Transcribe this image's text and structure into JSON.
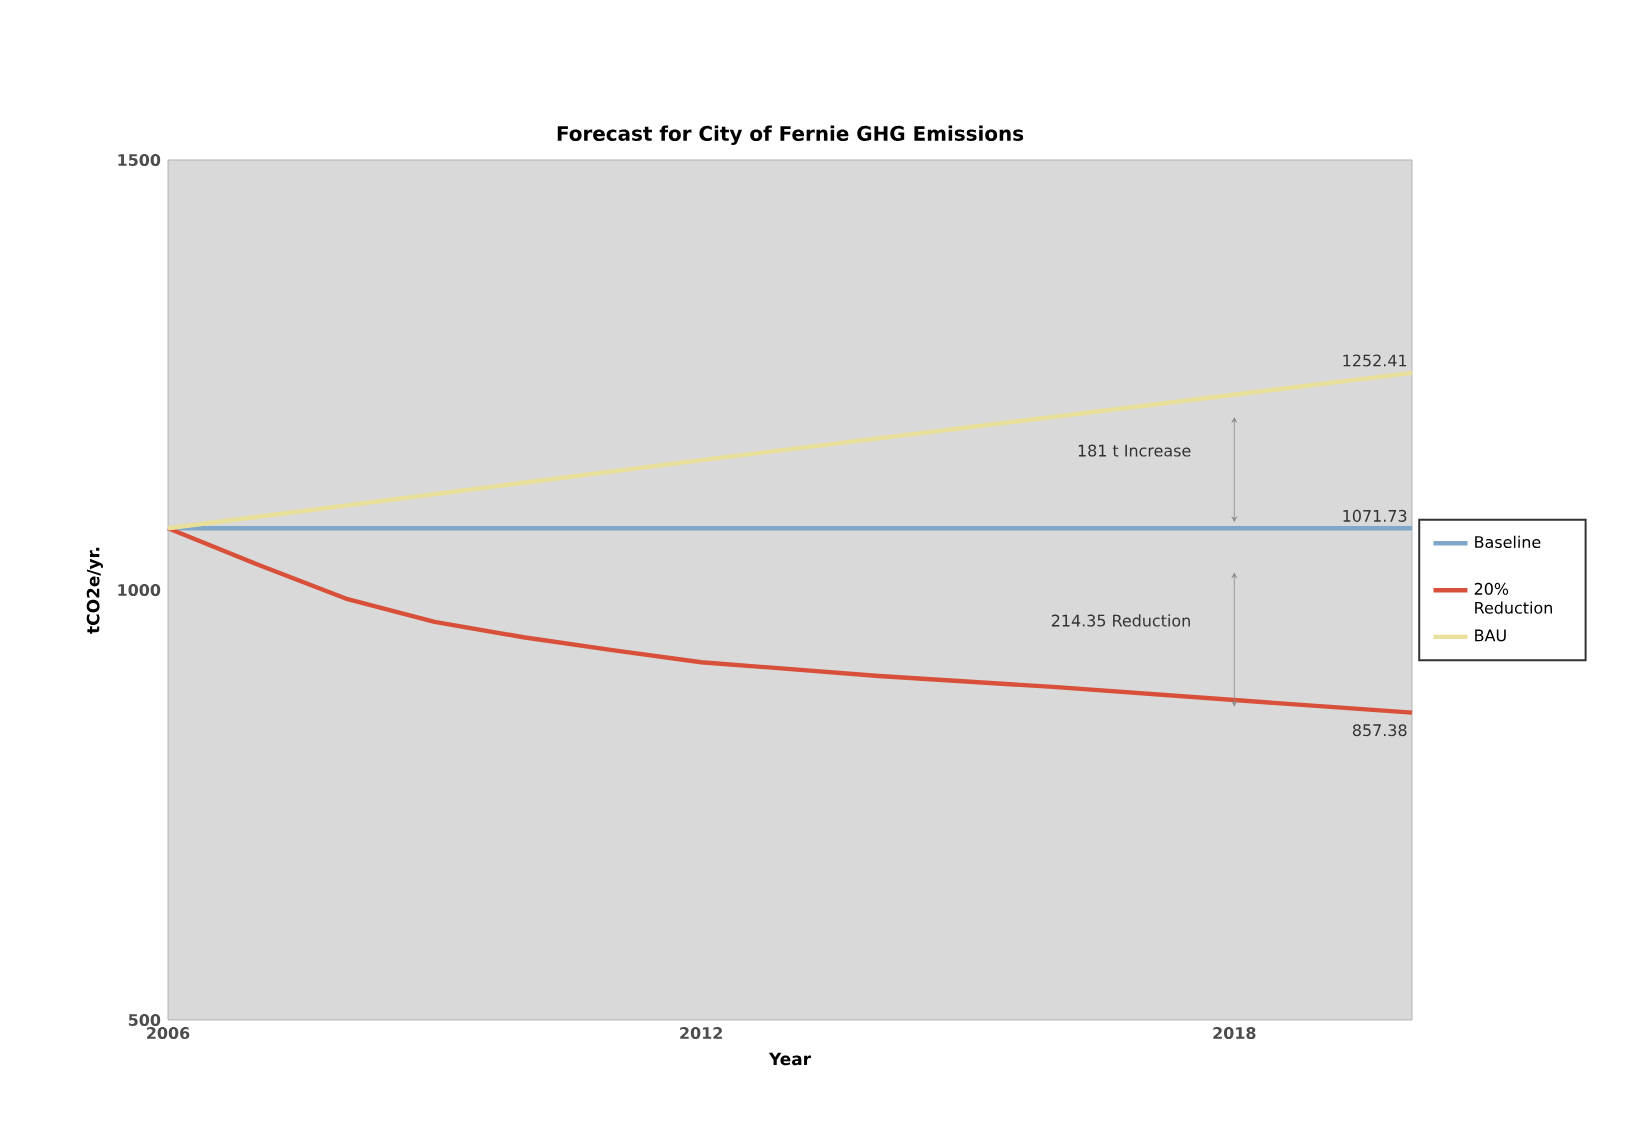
{
  "chart_data": {
    "type": "line",
    "title": "Forecast for City of Fernie GHG Emissions",
    "xlabel": "Year",
    "ylabel": "tCO2e/yr.",
    "xlim": [
      2006,
      2020
    ],
    "xticks": [
      2006,
      2012,
      2018
    ],
    "ylim": [
      500,
      1500
    ],
    "yticks": [
      500,
      1000,
      1500
    ],
    "series": [
      {
        "name": "Baseline",
        "color": "#7fa7c9",
        "x": [
          2006,
          2020
        ],
        "values": [
          1071.73,
          1071.73
        ],
        "value_labels": [
          null,
          "1071.73"
        ]
      },
      {
        "name": "20% Reduction",
        "color": "#d9503a",
        "x": [
          2006,
          2007,
          2008,
          2009,
          2010,
          2011,
          2012,
          2014,
          2016,
          2018,
          2020
        ],
        "values": [
          1071.73,
          1030,
          990,
          963,
          945,
          930,
          916,
          900,
          887,
          872,
          857.38
        ],
        "value_labels": [
          null,
          null,
          null,
          null,
          null,
          null,
          null,
          null,
          null,
          null,
          "857.38"
        ]
      },
      {
        "name": "BAU",
        "color": "#e8df9a",
        "x": [
          2006,
          2012,
          2020
        ],
        "values": [
          1071.73,
          1151,
          1252.41
        ],
        "value_labels": [
          null,
          null,
          "1252.41"
        ]
      }
    ],
    "annotations": [
      "181 t Increase",
      "214.35 Reduction"
    ],
    "legend": "right",
    "grid": false,
    "marker": "none",
    "line_style": "solid"
  }
}
